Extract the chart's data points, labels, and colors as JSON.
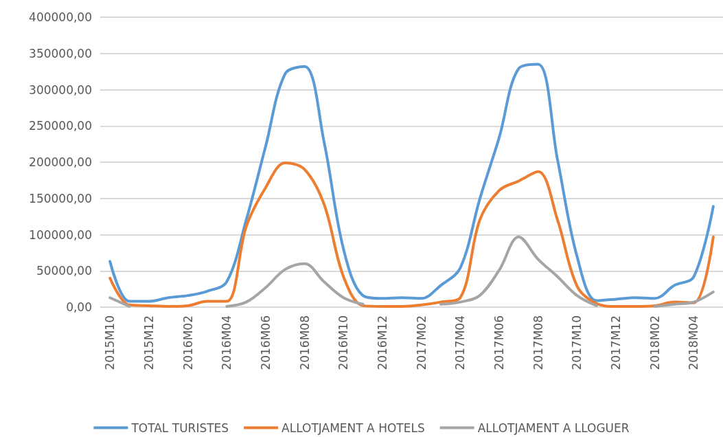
{
  "chart_data": {
    "type": "line",
    "categories": [
      "2015M10",
      null,
      "2015M12",
      null,
      "2016M02",
      null,
      "2016M04",
      null,
      "2016M06",
      null,
      "2016M08",
      null,
      "2016M10",
      null,
      "2016M12",
      null,
      "2017M02",
      null,
      "2017M04",
      null,
      "2017M06",
      null,
      "2017M08",
      null,
      "2017M10",
      null,
      "2017M12",
      null,
      "2018M02",
      null,
      "2018M04",
      null
    ],
    "series": [
      {
        "name": "TOTAL TURISTES",
        "color": "#5b9bd5",
        "values": [
          63000,
          8000,
          8000,
          13000,
          16000,
          22000,
          35000,
          120000,
          222000,
          322000,
          332000,
          228000,
          80000,
          16000,
          12000,
          13000,
          12000,
          30000,
          54000,
          149000,
          234000,
          329000,
          335000,
          203000,
          70000,
          9000,
          11000,
          13000,
          12000,
          30000,
          42000,
          139000
        ]
      },
      {
        "name": "ALLOTJAMENT A HOTELS",
        "color": "#ed7d31",
        "values": [
          40000,
          3000,
          2000,
          1000,
          2000,
          8000,
          8000,
          111000,
          165000,
          199000,
          190000,
          142000,
          42000,
          2000,
          1000,
          1000,
          3000,
          7000,
          13000,
          120000,
          161000,
          174000,
          187000,
          120000,
          29000,
          5000,
          1000,
          1000,
          2000,
          7000,
          6000,
          97000
        ]
      },
      {
        "name": "ALLOTJAMENT A LLOGUER",
        "color": "#a5a5a5",
        "values": [
          13000,
          1000,
          null,
          null,
          null,
          null,
          1000,
          7000,
          27000,
          52000,
          60000,
          35000,
          13000,
          4000,
          null,
          null,
          null,
          4000,
          7000,
          16000,
          51000,
          97000,
          66000,
          42000,
          16000,
          2000,
          null,
          null,
          1000,
          4000,
          7000,
          21000
        ]
      }
    ],
    "ylim": [
      0,
      400000
    ],
    "yticks": [
      {
        "value": 0,
        "label": "0,00"
      },
      {
        "value": 50000,
        "label": "50000,00"
      },
      {
        "value": 100000,
        "label": "100000,00"
      },
      {
        "value": 150000,
        "label": "150000,00"
      },
      {
        "value": 200000,
        "label": "200000,00"
      },
      {
        "value": 250000,
        "label": "250000,00"
      },
      {
        "value": 300000,
        "label": "300000,00"
      },
      {
        "value": 350000,
        "label": "350000,00"
      },
      {
        "value": 400000,
        "label": "400000,00"
      }
    ],
    "grid": "y",
    "legend": "bottom",
    "marker": "none",
    "line_style": "solid"
  }
}
